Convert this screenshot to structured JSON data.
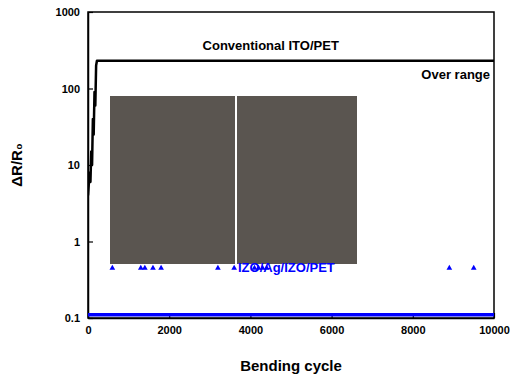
{
  "chart_data": {
    "type": "line",
    "log": "y",
    "xlabel": "Bending cycle",
    "ylabel": "ΔR/R₀",
    "xlim": [
      0,
      10000
    ],
    "ylim": [
      0.1,
      1000
    ],
    "xticks": [
      0,
      2000,
      4000,
      6000,
      8000,
      10000
    ],
    "yticks": [
      0.1,
      1,
      10,
      100,
      1000
    ],
    "annotations": [
      {
        "text": "Over range"
      }
    ],
    "series": [
      {
        "name": "Conventional ITO/PET",
        "color": "#000000",
        "type": "line",
        "x": [
          0,
          40,
          60,
          80,
          100,
          120,
          140,
          160,
          180,
          200,
          220,
          240,
          10000
        ],
        "values": [
          4,
          8,
          6,
          15,
          10,
          40,
          25,
          90,
          60,
          200,
          230,
          230,
          230
        ]
      },
      {
        "name": "IZO/Ag/IZO/PET",
        "color": "#0000ff",
        "type": "line",
        "x": [
          0,
          10000
        ],
        "values": [
          0.11,
          0.11
        ]
      },
      {
        "color": "#0000ff",
        "type": "scatter",
        "marker": "triangle",
        "x": [
          600,
          1300,
          1400,
          1600,
          1800,
          3200,
          3600,
          4100,
          4200,
          4300,
          4400,
          8900,
          9500
        ],
        "values": [
          0.45,
          0.45,
          0.45,
          0.45,
          0.45,
          0.45,
          0.45,
          0.45,
          0.45,
          0.45,
          0.45,
          0.45,
          0.45
        ]
      }
    ]
  }
}
